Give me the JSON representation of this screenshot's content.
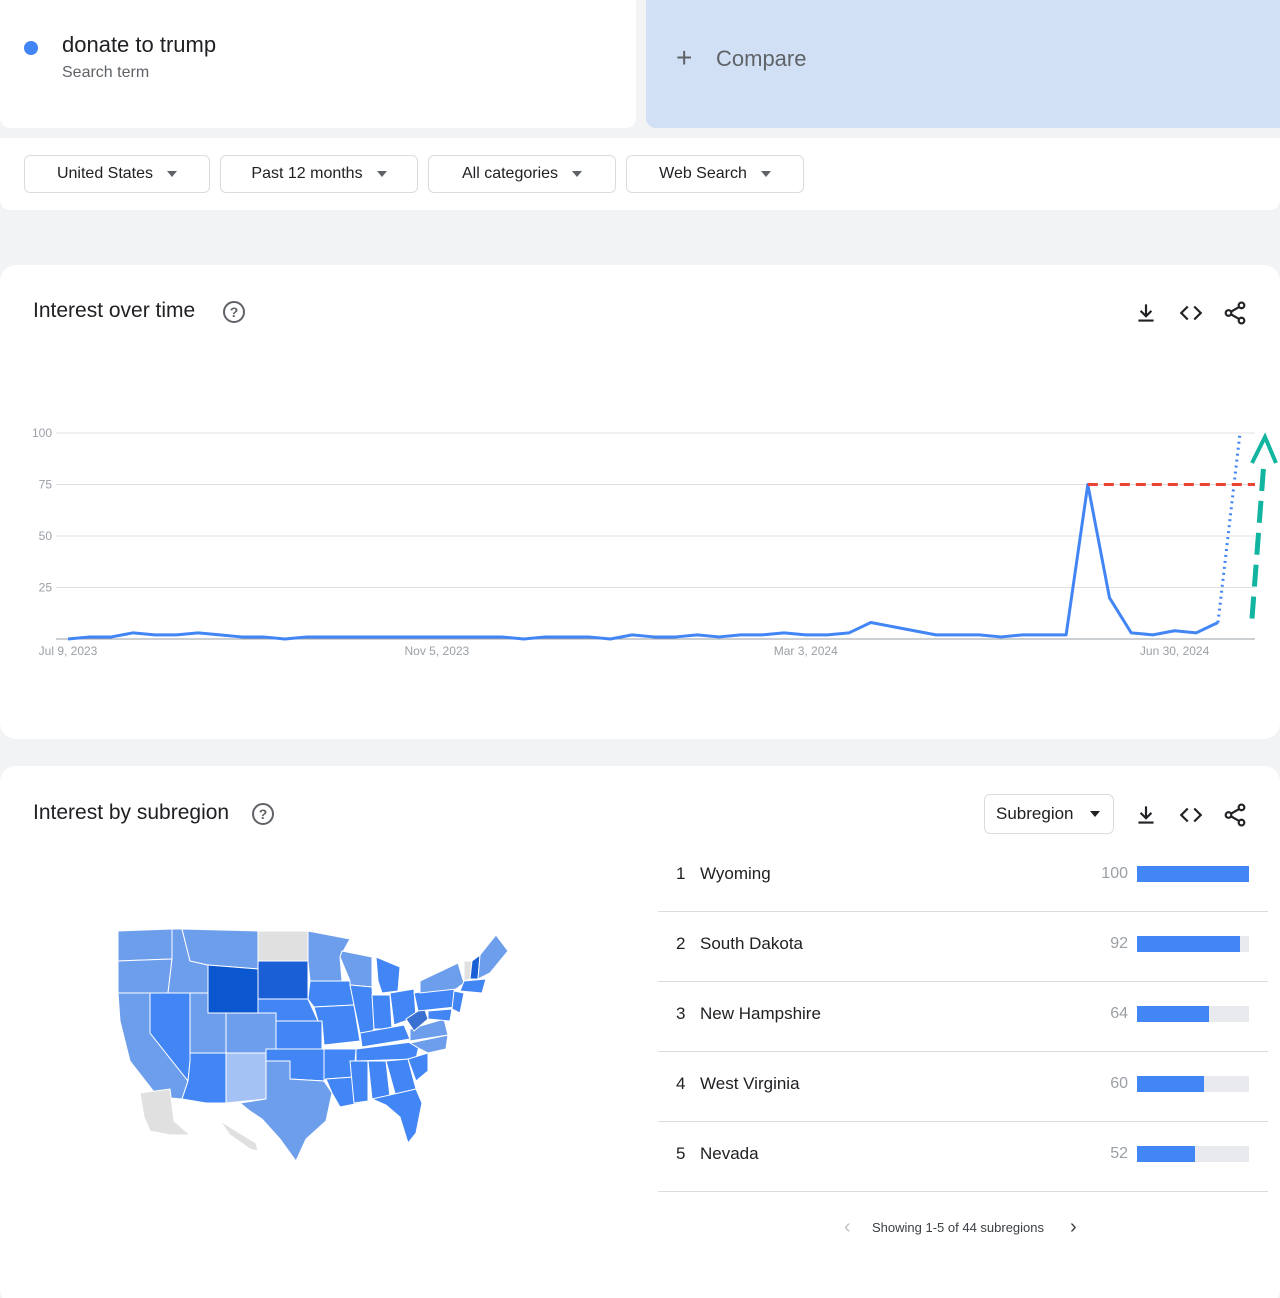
{
  "search_term": {
    "title": "donate to trump",
    "subtitle": "Search term",
    "color": "#4285f4"
  },
  "compare": {
    "label": "Compare",
    "icon": "plus-icon"
  },
  "filters": [
    {
      "label": "United States"
    },
    {
      "label": "Past 12 months"
    },
    {
      "label": "All categories"
    },
    {
      "label": "Web Search"
    }
  ],
  "interest_over_time": {
    "title": "Interest over time",
    "tools": [
      "download-icon",
      "embed-code-icon",
      "share-icon"
    ]
  },
  "chart_data": {
    "type": "line",
    "ylim": [
      0,
      100
    ],
    "yticks": [
      "100",
      "75",
      "50",
      "25"
    ],
    "xtick_labels": [
      "Jul 9, 2023",
      "Nov 5, 2023",
      "Mar 3, 2024",
      "Jun 30, 2024"
    ],
    "series": [
      {
        "values": [
          0,
          1,
          1,
          3,
          2,
          2,
          3,
          2,
          1,
          1,
          0,
          1,
          1,
          1,
          1,
          1,
          1,
          1,
          1,
          1,
          1,
          0,
          1,
          1,
          1,
          0,
          2,
          1,
          1,
          2,
          1,
          2,
          2,
          3,
          2,
          2,
          3,
          8,
          6,
          4,
          2,
          2,
          2,
          1,
          2,
          2,
          2,
          75,
          20,
          3,
          2,
          4,
          3,
          8
        ],
        "color": "#4285f4"
      }
    ],
    "annotations": {
      "projection_to": 100,
      "reference_level": 75,
      "reference_color": "#ea4335",
      "arrow_color": "#12b5a0"
    }
  },
  "interest_by_subregion": {
    "title": "Interest by subregion",
    "selector": "Subregion",
    "tools": [
      "download-icon",
      "embed-code-icon",
      "share-icon"
    ],
    "rows": [
      {
        "rank": "1",
        "name": "Wyoming",
        "value": "100",
        "pct": 100
      },
      {
        "rank": "2",
        "name": "South Dakota",
        "value": "92",
        "pct": 92
      },
      {
        "rank": "3",
        "name": "New Hampshire",
        "value": "64",
        "pct": 64
      },
      {
        "rank": "4",
        "name": "West Virginia",
        "value": "60",
        "pct": 60
      },
      {
        "rank": "5",
        "name": "Nevada",
        "value": "52",
        "pct": 52
      }
    ],
    "pager": "Showing 1-5 of 44 subregions",
    "map_colors": {
      "dark": "#0b57d0",
      "mid": "#4285f4",
      "light": "#6d9eeb",
      "pale": "#a4c2f4",
      "none": "#e0e0e0"
    }
  }
}
